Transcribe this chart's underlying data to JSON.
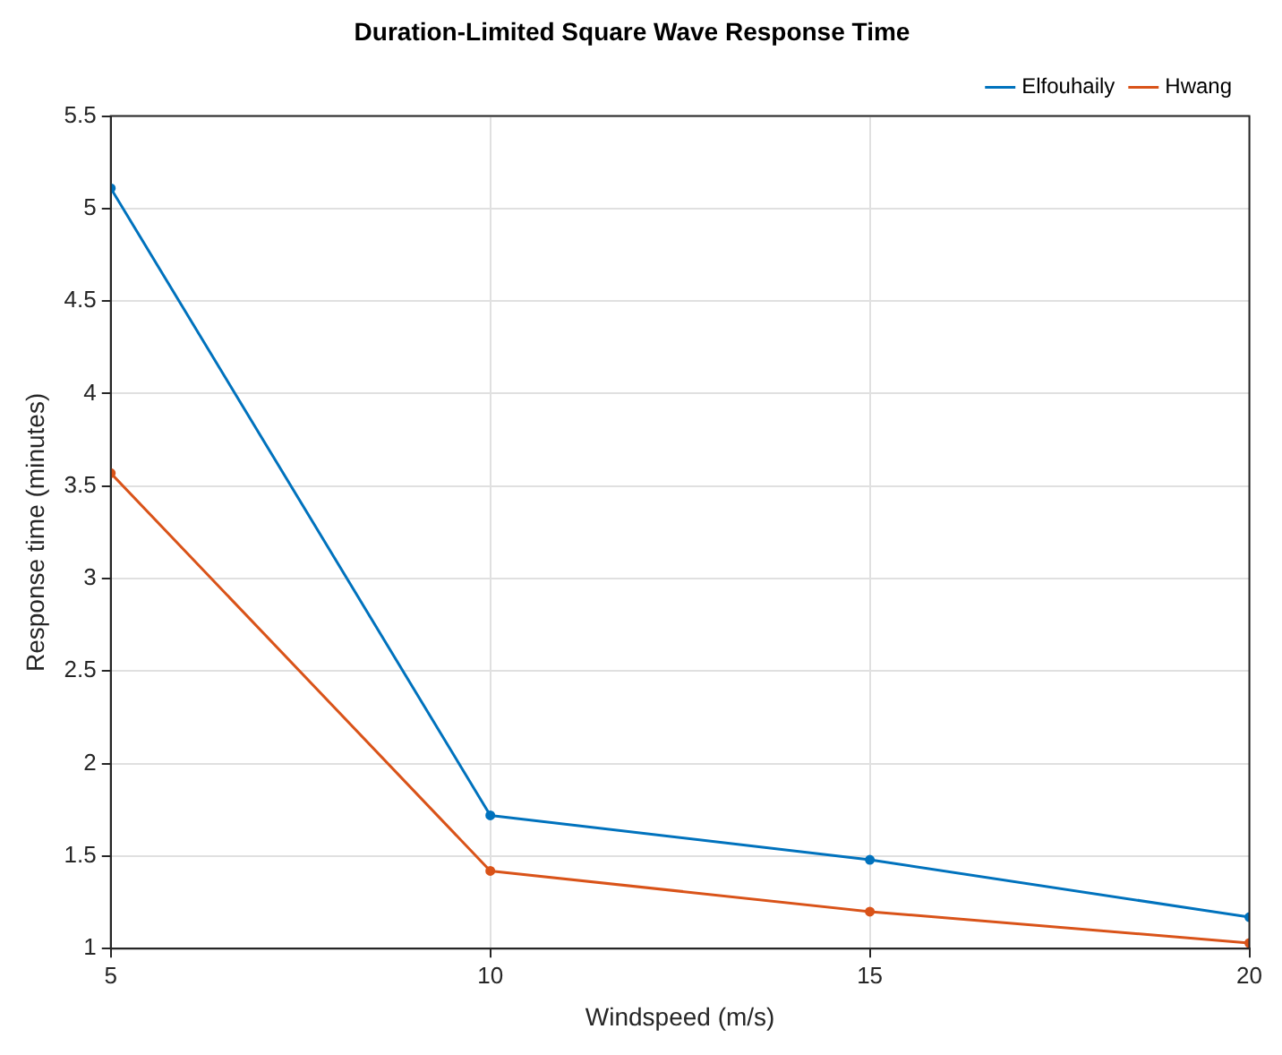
{
  "chart_data": {
    "type": "line",
    "title": "Duration-Limited Square Wave Response Time",
    "xlabel": "Windspeed (m/s)",
    "ylabel": "Response time (minutes)",
    "x": [
      5,
      10,
      15,
      20
    ],
    "series": [
      {
        "name": "Elfouhaily",
        "color": "#0072bd",
        "values": [
          5.11,
          1.72,
          1.48,
          1.17
        ]
      },
      {
        "name": "Hwang",
        "color": "#d95319",
        "values": [
          3.57,
          1.42,
          1.2,
          1.03
        ]
      }
    ],
    "xlim": [
      5,
      20
    ],
    "xticks": [
      5,
      10,
      15,
      20
    ],
    "ylim": [
      1,
      5.5
    ],
    "yticks": [
      1,
      1.5,
      2,
      2.5,
      3,
      3.5,
      4,
      4.5,
      5,
      5.5
    ],
    "grid": true,
    "legend": "top right",
    "marker": "circle",
    "line_style": "solid"
  }
}
